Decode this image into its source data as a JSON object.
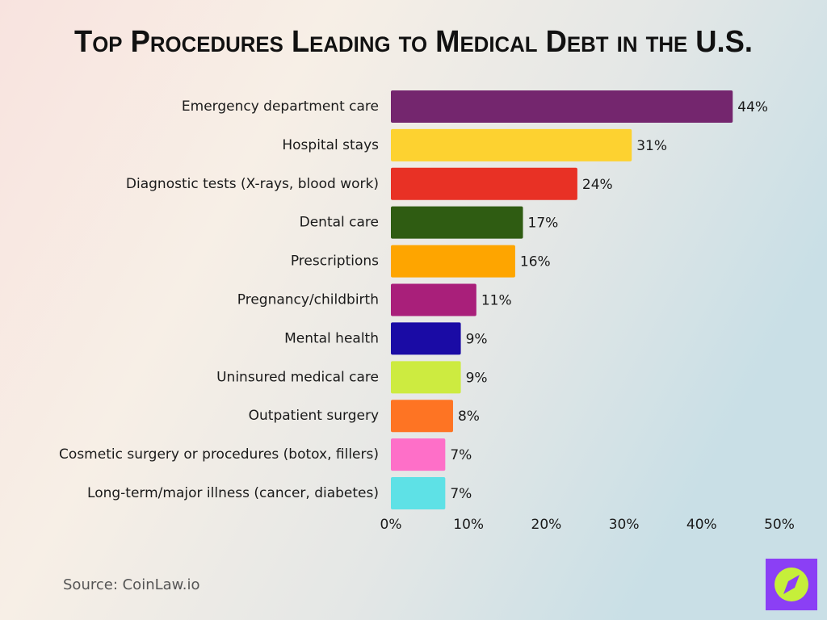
{
  "chart_data": {
    "type": "hbar",
    "title": "Top Procedures Leading to Medical Debt in the U.S.",
    "categories": [
      "Emergency department care",
      "Hospital stays",
      "Diagnostic tests (X-rays, blood work)",
      "Dental care",
      "Prescriptions",
      "Pregnancy/childbirth",
      "Mental health",
      "Uninsured medical care",
      "Outpatient surgery",
      "Cosmetic surgery or procedures (botox, fillers)",
      "Long-term/major illness (cancer, diabetes)"
    ],
    "values": [
      44,
      31,
      24,
      17,
      16,
      11,
      9,
      9,
      8,
      7,
      7
    ],
    "value_labels": [
      "44%",
      "31%",
      "24%",
      "17%",
      "16%",
      "11%",
      "9%",
      "9%",
      "8%",
      "7%",
      "7%"
    ],
    "colors": [
      "#74266e",
      "#fdd230",
      "#e83125",
      "#2f5c12",
      "#fea500",
      "#a91f7a",
      "#1a0ba5",
      "#cdeb40",
      "#fe7423",
      "#fe6fc8",
      "#5ee1e6"
    ],
    "xlim": [
      0,
      50
    ],
    "xticks": [
      {
        "value": 0,
        "label": "0%"
      },
      {
        "value": 10,
        "label": "10%"
      },
      {
        "value": 20,
        "label": "20%"
      },
      {
        "value": 30,
        "label": "30%"
      },
      {
        "value": 40,
        "label": "40%"
      },
      {
        "value": 50,
        "label": "50%"
      }
    ],
    "grid": false,
    "source": "Source: CoinLaw.io"
  }
}
